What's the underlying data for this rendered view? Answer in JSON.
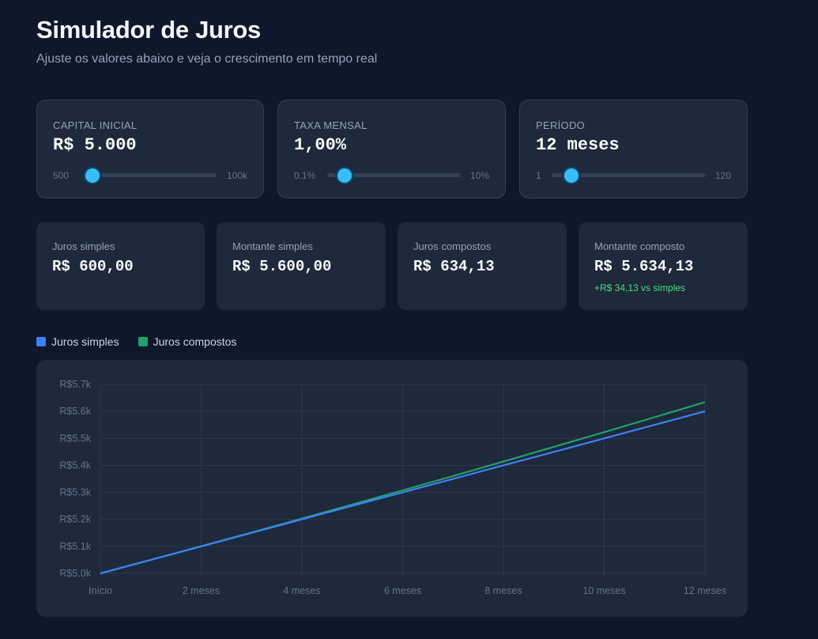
{
  "header": {
    "title": "Simulador de Juros",
    "subtitle": "Ajuste os valores abaixo e veja o crescimento em tempo real"
  },
  "controls": [
    {
      "label": "CAPITAL INICIAL",
      "value": "R$ 5.000",
      "min": "500",
      "max": "100k",
      "position": 0.0
    },
    {
      "label": "TAXA MENSAL",
      "value": "1,00%",
      "min": "0.1%",
      "max": "10%",
      "position": 0.14
    },
    {
      "label": "PERÍODO",
      "value": "12 meses",
      "min": "1",
      "max": "120",
      "position": 0.14
    }
  ],
  "stats": [
    {
      "label": "Juros simples",
      "value": "R$ 600,00",
      "note": ""
    },
    {
      "label": "Montante simples",
      "value": "R$ 5.600,00",
      "note": ""
    },
    {
      "label": "Juros compostos",
      "value": "R$ 634,13",
      "note": ""
    },
    {
      "label": "Montante composto",
      "value": "R$ 5.634,13",
      "note": "+R$ 34,13 vs simples"
    }
  ],
  "legend": [
    {
      "label": "Juros simples",
      "color": "#3b82f6"
    },
    {
      "label": "Juros compostos",
      "color": "#22a06b"
    }
  ],
  "colors": {
    "background": "#0f172a",
    "card": "#1e293b",
    "accent": "#38bdf8",
    "positive": "#4ade80"
  },
  "chart_data": {
    "type": "line",
    "x": [
      "Início",
      "",
      "2 meses",
      "",
      "4 meses",
      "",
      "6 meses",
      "",
      "8 meses",
      "",
      "10 meses",
      "",
      "12 meses"
    ],
    "x_tick_labels": [
      "Início",
      "2 meses",
      "4 meses",
      "6 meses",
      "8 meses",
      "10 meses",
      "12 meses"
    ],
    "y_tick_labels": [
      "R$5.0k",
      "R$5.1k",
      "R$5.2k",
      "R$5.3k",
      "R$5.4k",
      "R$5.5k",
      "R$5.6k",
      "R$5.7k"
    ],
    "ylim": [
      5000,
      5700
    ],
    "grid": true,
    "legend_position": "top-left",
    "series": [
      {
        "name": "Juros simples",
        "color": "#3b82f6",
        "values": [
          5000,
          5050,
          5100,
          5150,
          5200,
          5250,
          5300,
          5350,
          5400,
          5450,
          5500,
          5550,
          5600
        ]
      },
      {
        "name": "Juros compostos",
        "color": "#22a06b",
        "values": [
          5000,
          5050,
          5100.5,
          5151.51,
          5203.02,
          5255.05,
          5307.6,
          5360.68,
          5414.28,
          5468.43,
          5523.11,
          5578.34,
          5634.13
        ]
      }
    ]
  }
}
